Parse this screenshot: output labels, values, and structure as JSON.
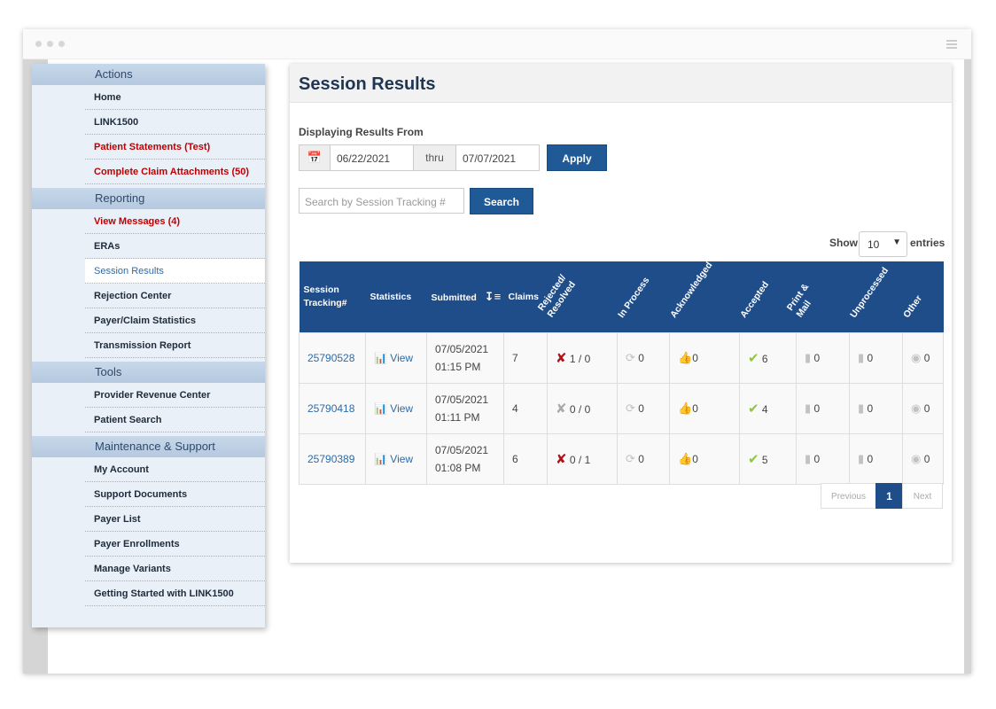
{
  "sidebar": {
    "sections": [
      {
        "title": "Actions",
        "items": [
          {
            "label": "Home",
            "style": "normal"
          },
          {
            "label": "LINK1500",
            "style": "normal"
          },
          {
            "label": "Patient Statements (Test)",
            "style": "red"
          },
          {
            "label": "Complete Claim Attachments (50)",
            "style": "red"
          }
        ]
      },
      {
        "title": "Reporting",
        "items": [
          {
            "label": "View Messages (4)",
            "style": "red"
          },
          {
            "label": "ERAs",
            "style": "normal"
          },
          {
            "label": "Session Results",
            "style": "active"
          },
          {
            "label": "Rejection Center",
            "style": "normal"
          },
          {
            "label": "Payer/Claim Statistics",
            "style": "normal"
          },
          {
            "label": "Transmission Report",
            "style": "normal"
          }
        ]
      },
      {
        "title": "Tools",
        "items": [
          {
            "label": "Provider Revenue Center",
            "style": "normal"
          },
          {
            "label": "Patient Search",
            "style": "normal"
          }
        ]
      },
      {
        "title": "Maintenance & Support",
        "items": [
          {
            "label": "My Account",
            "style": "normal"
          },
          {
            "label": "Support Documents",
            "style": "normal"
          },
          {
            "label": "Payer List",
            "style": "normal"
          },
          {
            "label": "Payer Enrollments",
            "style": "normal"
          },
          {
            "label": "Manage Variants",
            "style": "normal"
          },
          {
            "label": "Getting Started with LINK1500",
            "style": "normal"
          }
        ]
      }
    ]
  },
  "main": {
    "title": "Session Results",
    "filter_label": "Displaying Results From",
    "date_from": "06/22/2021",
    "thru_label": "thru",
    "date_to": "07/07/2021",
    "apply_label": "Apply",
    "search_placeholder": "Search by Session Tracking #",
    "search_label": "Search",
    "show_label": "Show",
    "entries_value": "10",
    "entries_label": "entries"
  },
  "table": {
    "headers": {
      "session": "Session Tracking#",
      "statistics": "Statistics",
      "submitted": "Submitted",
      "claims": "Claims",
      "rejected": "Rejected/ Resolved",
      "in_process": "In Process",
      "acknowledged": "Acknowledged",
      "accepted": "Accepted",
      "print_mail": "Print & Mail",
      "unprocessed": "Unprocessed",
      "other": "Other"
    },
    "rows": [
      {
        "session": "25790528",
        "stat_label": "View",
        "date": "07/05/2021",
        "time": "01:15 PM",
        "claims": "7",
        "rejected": "1 / 0",
        "rejected_active": true,
        "in_process": "0",
        "acknowledged": "0",
        "accepted": "6",
        "print_mail": "0",
        "unprocessed": "0",
        "other": "0"
      },
      {
        "session": "25790418",
        "stat_label": "View",
        "date": "07/05/2021",
        "time": "01:11 PM",
        "claims": "4",
        "rejected": "0 / 0",
        "rejected_active": false,
        "in_process": "0",
        "acknowledged": "0",
        "accepted": "4",
        "print_mail": "0",
        "unprocessed": "0",
        "other": "0"
      },
      {
        "session": "25790389",
        "stat_label": "View",
        "date": "07/05/2021",
        "time": "01:08 PM",
        "claims": "6",
        "rejected": "0 / 1",
        "rejected_active": true,
        "in_process": "0",
        "acknowledged": "0",
        "accepted": "5",
        "print_mail": "0",
        "unprocessed": "0",
        "other": "0"
      }
    ]
  },
  "pagination": {
    "previous": "Previous",
    "current": "1",
    "next": "Next"
  }
}
